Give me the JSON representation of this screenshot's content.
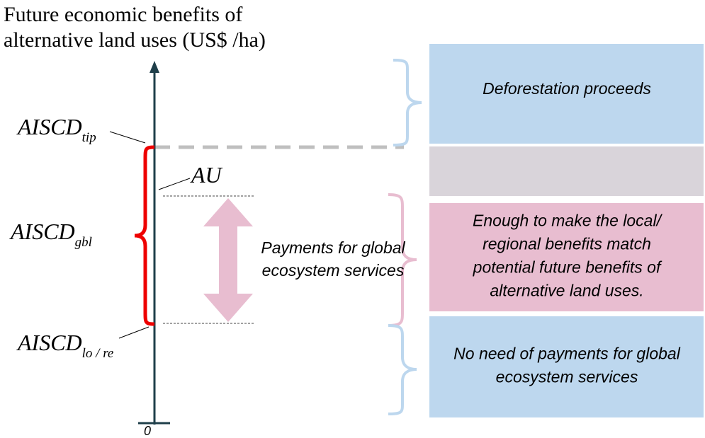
{
  "axis_title": [
    "Future economic benefits of",
    "alternative land uses (US$ /ha)"
  ],
  "axis_origin": "0",
  "labels": {
    "tip": {
      "main": "AISCD",
      "sub": "tip"
    },
    "gbl": {
      "main": "AISCD",
      "sub": "gbl"
    },
    "lore": {
      "main": "AISCD",
      "sub": "lo / re"
    },
    "au": "AU"
  },
  "payments": [
    "Payments for global",
    "ecosystem services"
  ],
  "boxes": [
    {
      "lines": [
        "Deforestation proceeds"
      ]
    },
    {
      "lines": []
    },
    {
      "lines": [
        "Enough to make the local/",
        "regional benefits match",
        "potential future benefits of",
        "alternative land uses."
      ]
    },
    {
      "lines": [
        "No need of payments for global",
        "ecosystem services"
      ]
    }
  ]
}
